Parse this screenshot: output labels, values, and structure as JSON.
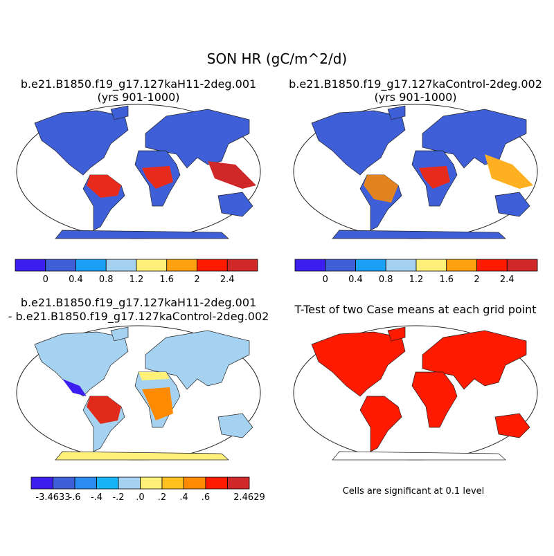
{
  "title": "SON HR (gC/m^2/d)",
  "panels": [
    {
      "title_lines": [
        "b.e21.B1850.f19_g17.127kaH11-2deg.001",
        "(yrs 901-1000)"
      ]
    },
    {
      "title_lines": [
        "b.e21.B1850.f19_g17.127kaControl-2deg.002",
        "(yrs 901-1000)"
      ]
    },
    {
      "title_lines": [
        "b.e21.B1850.f19_g17.127kaH11-2deg.001",
        "- b.e21.B1850.f19_g17.127kaControl-2deg.002"
      ]
    },
    {
      "title_lines": [
        "T-Test of two Case means at each grid point"
      ]
    }
  ],
  "colorbars": [
    {
      "colors": [
        "#3c1ef0",
        "#3f5fd8",
        "#1aa0f5",
        "#a5d2f0",
        "#fff07a",
        "#ffa010",
        "#ff1a00",
        "#d02828"
      ],
      "labels": [
        "0",
        "0.4",
        "0.8",
        "1.2",
        "1.6",
        "2",
        "2.4"
      ]
    },
    {
      "colors": [
        "#3c1ef0",
        "#3f5fd8",
        "#1aa0f5",
        "#a5d2f0",
        "#fff07a",
        "#ffa010",
        "#ff1a00",
        "#d02828"
      ],
      "labels": [
        "0",
        "0.4",
        "0.8",
        "1.2",
        "1.6",
        "2",
        "2.4"
      ]
    },
    {
      "colors": [
        "#3c1ef0",
        "#3f5fd8",
        "#2a8cf0",
        "#18b4f8",
        "#a5d2f0",
        "#fff07a",
        "#ffc020",
        "#ff8a00",
        "#ff1a00",
        "#d02828"
      ],
      "labels": [
        "-3.4633",
        "-.6",
        "-.4",
        "-.2",
        ".0",
        ".2",
        ".4",
        ".6",
        "2.4629"
      ]
    }
  ],
  "note": "Cells are significant at 0.1 level"
}
